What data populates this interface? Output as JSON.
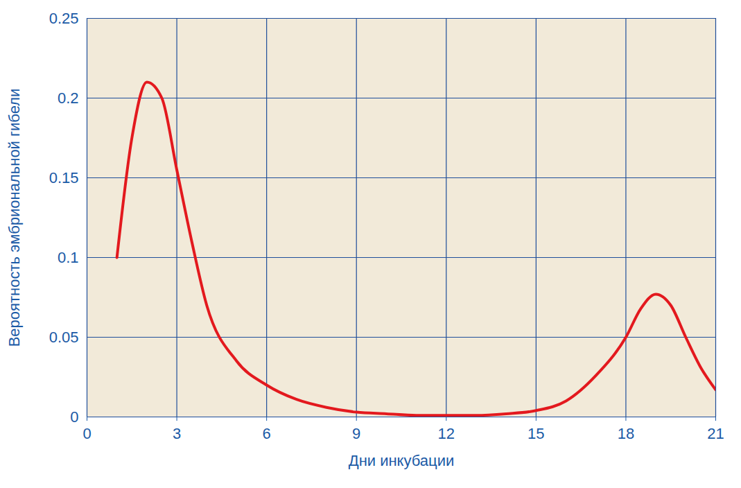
{
  "chart_data": {
    "type": "line",
    "x_label": "Дни инкубации",
    "y_label": "Вероятность эмбриональной гибели",
    "x": [
      1,
      1.5,
      2,
      2.5,
      3,
      3.5,
      4,
      5,
      6,
      7,
      8,
      9,
      10,
      11,
      12,
      13,
      14,
      15,
      16,
      17,
      18,
      18.5,
      19,
      19.5,
      20,
      20.5,
      21
    ],
    "values": [
      0.1,
      0.175,
      0.21,
      0.2,
      0.155,
      0.11,
      0.07,
      0.035,
      0.02,
      0.011,
      0.006,
      0.003,
      0.002,
      0.001,
      0.001,
      0.001,
      0.002,
      0.004,
      0.01,
      0.026,
      0.05,
      0.068,
      0.077,
      0.07,
      0.05,
      0.031,
      0.017
    ],
    "color": "#e3191e",
    "xlim": [
      0,
      21
    ],
    "ylim": [
      0,
      0.25
    ],
    "xticks": [
      0,
      3,
      6,
      9,
      12,
      15,
      18,
      21
    ],
    "yticks": [
      0,
      0.05,
      0.1,
      0.15,
      0.2,
      0.25
    ],
    "grid": true
  }
}
